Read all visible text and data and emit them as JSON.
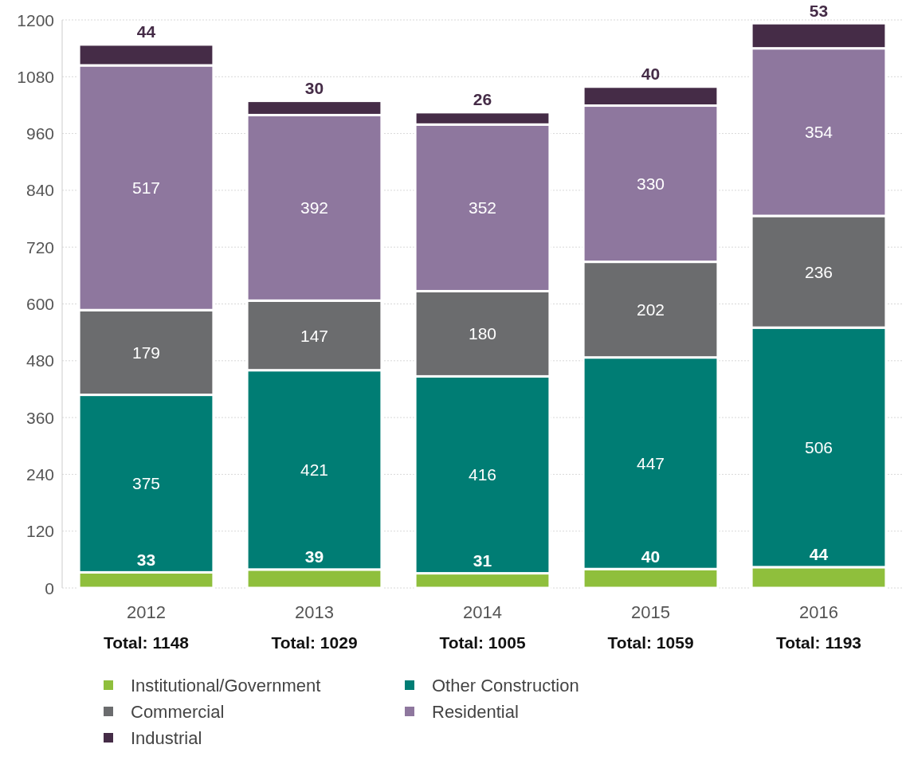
{
  "chart_data": {
    "type": "bar",
    "stacked": true,
    "categories": [
      "2012",
      "2013",
      "2014",
      "2015",
      "2016"
    ],
    "series": [
      {
        "name": "Institutional/Government",
        "color": "#8fbf3c",
        "values": [
          33,
          39,
          31,
          40,
          44
        ]
      },
      {
        "name": "Other Construction",
        "color": "#007d74",
        "values": [
          375,
          421,
          416,
          447,
          506
        ]
      },
      {
        "name": "Commercial",
        "color": "#6b6c6e",
        "values": [
          179,
          147,
          180,
          202,
          236
        ]
      },
      {
        "name": "Residential",
        "color": "#8e779e",
        "values": [
          517,
          392,
          352,
          330,
          354
        ]
      },
      {
        "name": "Industrial",
        "color": "#452c47",
        "values": [
          44,
          30,
          26,
          40,
          53
        ]
      }
    ],
    "ylim": [
      0,
      1200
    ],
    "yticks": [
      0,
      120,
      240,
      360,
      480,
      600,
      720,
      840,
      960,
      1080,
      1200
    ],
    "grid": "y",
    "data_labels": true,
    "legend": "bottom",
    "totals": [
      "Total: 1148",
      "Total: 1029",
      "Total: 1005",
      "Total: 1059",
      "Total: 1193"
    ]
  }
}
